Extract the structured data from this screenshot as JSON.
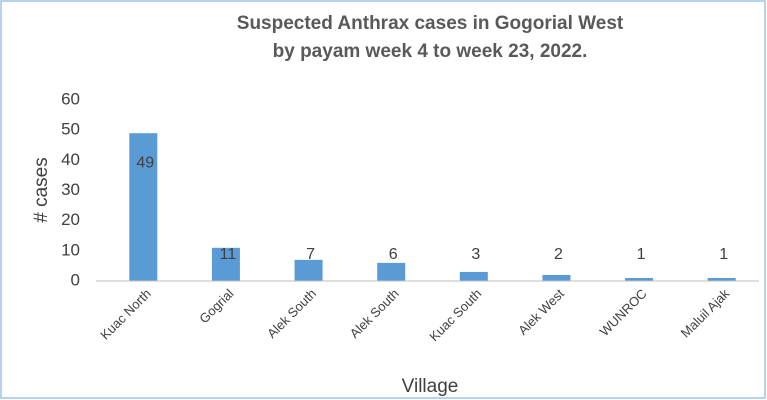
{
  "chart_data": {
    "type": "bar",
    "title": "Suspected Anthrax cases in Gogorial West by payam week 4 to week 23, 2022.",
    "x_label": "Village",
    "y_label": "# cases",
    "categories": [
      "Kuac North",
      "Gogrial",
      "Alek  South",
      "Alek South",
      "Kuac South",
      "Alek  West",
      "WUNROC",
      "Maluil Ajak"
    ],
    "values": [
      49,
      11,
      7,
      6,
      3,
      2,
      1,
      1
    ],
    "color": "#5b9bd5",
    "ylim": [
      0,
      60
    ],
    "yticks": [
      0,
      10,
      20,
      30,
      40,
      50,
      60
    ],
    "grid": false
  }
}
